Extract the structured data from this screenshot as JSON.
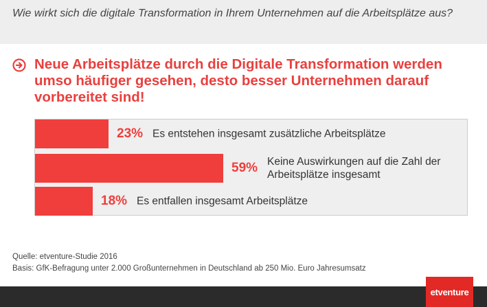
{
  "question": "Wie wirkt sich die digitale Transformation in Ihrem Unternehmen auf die Arbeitsplätze aus?",
  "headline": "Neue Arbeitsplätze durch die Digitale Transformation werden umso häufiger gesehen, desto besser Unternehmen darauf vorbereitet sind!",
  "accent_color": "#e8403e",
  "icon": "arrow-circle-right-icon",
  "chart_data": {
    "type": "bar",
    "orientation": "horizontal",
    "categories": [
      "Es entstehen insgesamt zusätzliche Arbeitsplätze",
      "Keine Auswirkungen auf die Zahl der Arbeitsplätze insgesamt",
      "Es entfallen insgesamt Arbeitsplätze"
    ],
    "values": [
      23,
      59,
      18
    ],
    "value_labels": [
      "23%",
      "59%",
      "18%"
    ],
    "unit": "%",
    "xlim": [
      0,
      100
    ],
    "bar_color": "#ef3e3c",
    "grid": false,
    "legend": "none"
  },
  "source": {
    "line1": "Quelle: etventure-Studie 2016",
    "line2": "Basis: GfK-Befragung unter 2.000 Großunternehmen in Deutschland ab 250 Mio. Euro Jahresumsatz"
  },
  "logo_text": "etventure"
}
